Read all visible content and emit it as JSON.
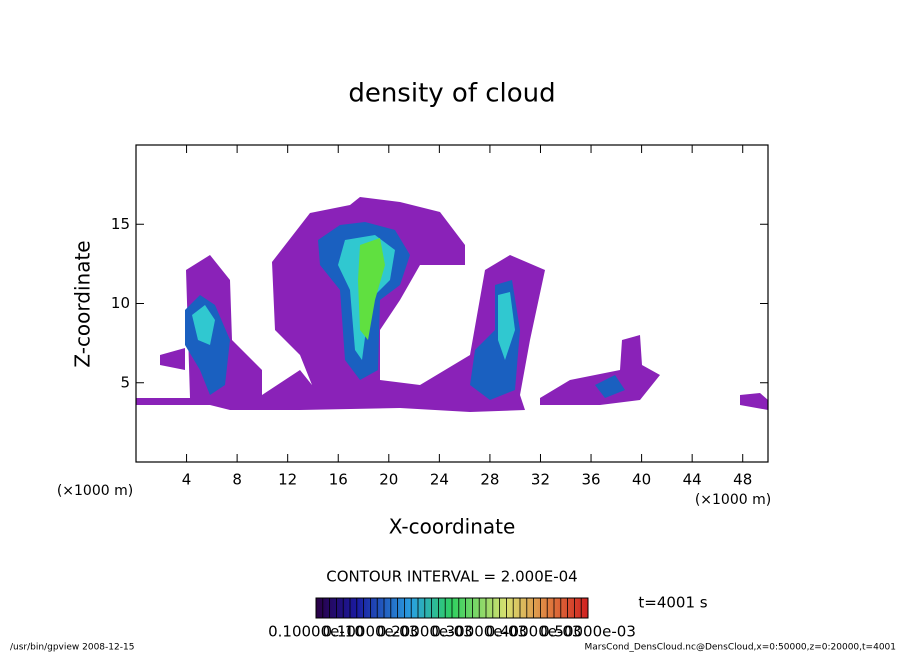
{
  "chart_data": {
    "type": "contour",
    "title": "density of cloud",
    "x_label": "X-coordinate",
    "y_label": "Z-coordinate",
    "x_unit": "(×1000 m)",
    "y_unit": "(×1000 m)",
    "xlim": [
      0,
      50
    ],
    "ylim": [
      0,
      20
    ],
    "xticks": [
      4,
      8,
      12,
      16,
      20,
      24,
      28,
      32,
      36,
      40,
      44,
      48
    ],
    "yticks": [
      5,
      10,
      15
    ],
    "contour_interval": "CONTOUR INTERVAL = 2.000E-04",
    "time_label": "t=4001 s",
    "colorbar_labels": [
      "0.10000e-10",
      "0.10000e-03",
      "0.20000e-03",
      "0.30000e-03",
      "0.40000e-03",
      "0.50000e-03"
    ],
    "footer_left": "/usr/bin/gpview   2008-12-15",
    "footer_right": "MarsCond_DensCloud.nc@DensCloud,x=0:50000,z=0:20000,t=4001"
  }
}
